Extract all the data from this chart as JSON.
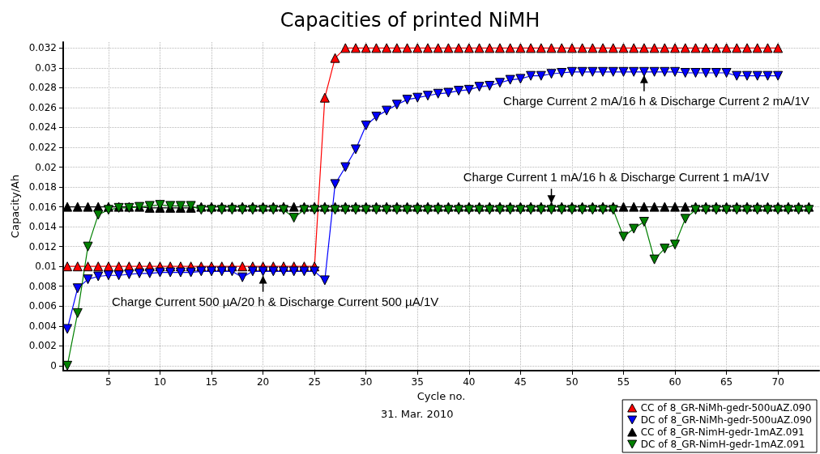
{
  "chart_data": {
    "type": "line",
    "title": "Capacities of printed NiMH",
    "xlabel": "Cycle no.",
    "ylabel": "Capacity/Ah",
    "x": [
      1,
      2,
      3,
      4,
      5,
      6,
      7,
      8,
      9,
      10,
      11,
      12,
      13,
      14,
      15,
      16,
      17,
      18,
      19,
      20,
      21,
      22,
      23,
      24,
      25,
      26,
      27,
      28,
      29,
      30,
      31,
      32,
      33,
      34,
      35,
      36,
      37,
      38,
      39,
      40,
      41,
      42,
      43,
      44,
      45,
      46,
      47,
      48,
      49,
      50,
      51,
      52,
      53,
      54,
      55,
      56,
      57,
      58,
      59,
      60,
      61,
      62,
      63,
      64,
      65,
      66,
      67,
      68,
      69,
      70,
      71,
      72,
      73
    ],
    "xlim": [
      0.6,
      74
    ],
    "xticks": [
      5,
      10,
      15,
      20,
      25,
      30,
      35,
      40,
      45,
      50,
      55,
      60,
      65,
      70
    ],
    "ylim": [
      -0.0005,
      0.0326
    ],
    "yticks": [
      0,
      0.002,
      0.004,
      0.006,
      0.008,
      0.01,
      0.012,
      0.014,
      0.016,
      0.018,
      0.02,
      0.022,
      0.024,
      0.026,
      0.028,
      0.03,
      0.032
    ],
    "grid": true,
    "legend": "bottom right",
    "line_style": "solid",
    "series": [
      {
        "name": "CC of 8_GR-NiMh-gedr-500uAZ.090",
        "color": "#ff0000",
        "marker": "triangle",
        "values": [
          0.01,
          0.01,
          0.01,
          0.01,
          0.01,
          0.01,
          0.01,
          0.01,
          0.01,
          0.01,
          0.01,
          0.01,
          0.01,
          0.01,
          0.01,
          0.01,
          0.01,
          0.01,
          0.01,
          0.01,
          0.01,
          0.01,
          0.01,
          0.01,
          0.01,
          0.027,
          0.031,
          0.032,
          0.032,
          0.032,
          0.032,
          0.032,
          0.032,
          0.032,
          0.032,
          0.032,
          0.032,
          0.032,
          0.032,
          0.032,
          0.032,
          0.032,
          0.032,
          0.032,
          0.032,
          0.032,
          0.032,
          0.032,
          0.032,
          0.032,
          0.032,
          0.032,
          0.032,
          0.032,
          0.032,
          0.032,
          0.032,
          0.032,
          0.032,
          0.032,
          0.032,
          0.032,
          0.032,
          0.032,
          0.032,
          0.032,
          0.032,
          0.032,
          0.032,
          0.032,
          null,
          null,
          null
        ]
      },
      {
        "name": "DC of 8_GR-NiMh-gedr-500uAZ.090",
        "color": "#0000ff",
        "marker": "triangle-down",
        "values": [
          0.0037,
          0.0078,
          0.0087,
          0.009,
          0.0091,
          0.0091,
          0.0092,
          0.0093,
          0.0093,
          0.0094,
          0.0094,
          0.0094,
          0.0094,
          0.0095,
          0.0095,
          0.0095,
          0.0095,
          0.0089,
          0.0095,
          0.0095,
          0.0095,
          0.0095,
          0.0095,
          0.0095,
          0.0095,
          0.0086,
          0.0183,
          0.02,
          0.0218,
          0.0242,
          0.0251,
          0.0257,
          0.0263,
          0.0268,
          0.027,
          0.0272,
          0.0274,
          0.0275,
          0.0277,
          0.0278,
          0.0281,
          0.0282,
          0.0285,
          0.0288,
          0.0289,
          0.0292,
          0.0292,
          0.0294,
          0.0295,
          0.0296,
          0.0296,
          0.0296,
          0.0296,
          0.0296,
          0.0296,
          0.0296,
          0.0296,
          0.0296,
          0.0296,
          0.0296,
          0.0295,
          0.0295,
          0.0295,
          0.0295,
          0.0295,
          0.0292,
          0.0292,
          0.0292,
          0.0292,
          0.0292,
          null,
          null,
          null
        ]
      },
      {
        "name": "CC of 8_GR-NimH-gedr-1mAZ.091",
        "color": "#000000",
        "marker": "triangle",
        "values": [
          0.016,
          0.016,
          0.016,
          0.016,
          0.016,
          0.016,
          0.016,
          0.016,
          0.0159,
          0.0159,
          0.0159,
          0.0159,
          0.0159,
          0.016,
          0.016,
          0.016,
          0.016,
          0.016,
          0.016,
          0.016,
          0.016,
          0.016,
          0.016,
          0.016,
          0.016,
          0.016,
          0.016,
          0.016,
          0.016,
          0.016,
          0.016,
          0.016,
          0.016,
          0.016,
          0.016,
          0.016,
          0.016,
          0.016,
          0.016,
          0.016,
          0.016,
          0.016,
          0.016,
          0.016,
          0.016,
          0.016,
          0.016,
          0.016,
          0.016,
          0.016,
          0.016,
          0.016,
          0.016,
          0.016,
          0.016,
          0.016,
          0.016,
          0.016,
          0.016,
          0.016,
          0.016,
          0.016,
          0.016,
          0.016,
          0.016,
          0.016,
          0.016,
          0.016,
          0.016,
          0.016,
          0.016,
          0.016,
          0.016
        ]
      },
      {
        "name": "DC of 8_GR-NimH-gedr-1mAZ.091",
        "color": "#008000",
        "marker": "triangle-down",
        "values": [
          0,
          0.0053,
          0.012,
          0.0152,
          0.0157,
          0.0159,
          0.0159,
          0.016,
          0.0161,
          0.0162,
          0.0161,
          0.0161,
          0.0161,
          0.0157,
          0.0157,
          0.0157,
          0.0157,
          0.0157,
          0.0157,
          0.0157,
          0.0157,
          0.0157,
          0.0149,
          0.0157,
          0.0157,
          0.0157,
          0.0157,
          0.0157,
          0.0157,
          0.0157,
          0.0157,
          0.0157,
          0.0157,
          0.0157,
          0.0157,
          0.0157,
          0.0157,
          0.0157,
          0.0157,
          0.0157,
          0.0157,
          0.0157,
          0.0157,
          0.0157,
          0.0157,
          0.0157,
          0.0157,
          0.0157,
          0.0157,
          0.0157,
          0.0157,
          0.0157,
          0.0157,
          0.0157,
          0.013,
          0.0138,
          0.0145,
          0.0107,
          0.0118,
          0.0122,
          0.0148,
          0.0157,
          0.0157,
          0.0157,
          0.0157,
          0.0157,
          0.0157,
          0.0157,
          0.0157,
          0.0157,
          0.0157,
          0.0157,
          0.0157
        ]
      }
    ],
    "annotations": [
      {
        "text": "Charge Current 500 µA/20 h & Discharge Current 500 µA/1V",
        "x": 20,
        "y": 0.0094
      },
      {
        "text": "Charge Current 1 mA/16 h & Discharge Current 1 mA/1V",
        "x": 48,
        "y": 0.0157
      },
      {
        "text": "Charge Current 2 mA/16 h & Discharge Current 2 mA/1V",
        "x": 57,
        "y": 0.0296
      },
      "31. Mar. 2010"
    ]
  }
}
